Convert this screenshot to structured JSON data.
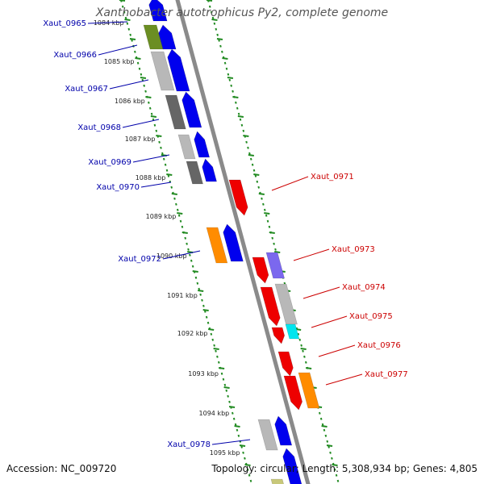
{
  "title": "Xanthobacter autotrophicus Py2, complete genome",
  "footer": {
    "accession": "Accession: NC_009720",
    "summary": "Topology: circular; Length: 5,308,934 bp; Genes: 4,805"
  },
  "colors": {
    "forward_cds": "#0000ee",
    "reverse_cds": "#ee0000",
    "gray": "#b8b8b8",
    "dark_gray": "#666666",
    "olive": "#6b8e23",
    "orange": "#ff8c00",
    "purple": "#7b68ee",
    "cyan": "#00e5ee",
    "backbone": "#8a8a8a",
    "ticks": "#228b22",
    "forward_label": "#0000aa",
    "reverse_label": "#cc0000"
  },
  "tick_labels": [
    "1084 kbp",
    "1085 kbp",
    "1086 kbp",
    "1087 kbp",
    "1088 kbp",
    "1089 kbp",
    "1090 kbp",
    "1091 kbp",
    "1092 kbp",
    "1093 kbp",
    "1094 kbp",
    "1095 kbp"
  ],
  "forward_labels": [
    "Xaut_0965",
    "Xaut_0966",
    "Xaut_0967",
    "Xaut_0968",
    "Xaut_0969",
    "Xaut_0970",
    "Xaut_0972",
    "Xaut_0978"
  ],
  "reverse_labels": [
    "Xaut_0971",
    "Xaut_0973",
    "Xaut_0974",
    "Xaut_0975",
    "Xaut_0976",
    "Xaut_0977"
  ]
}
